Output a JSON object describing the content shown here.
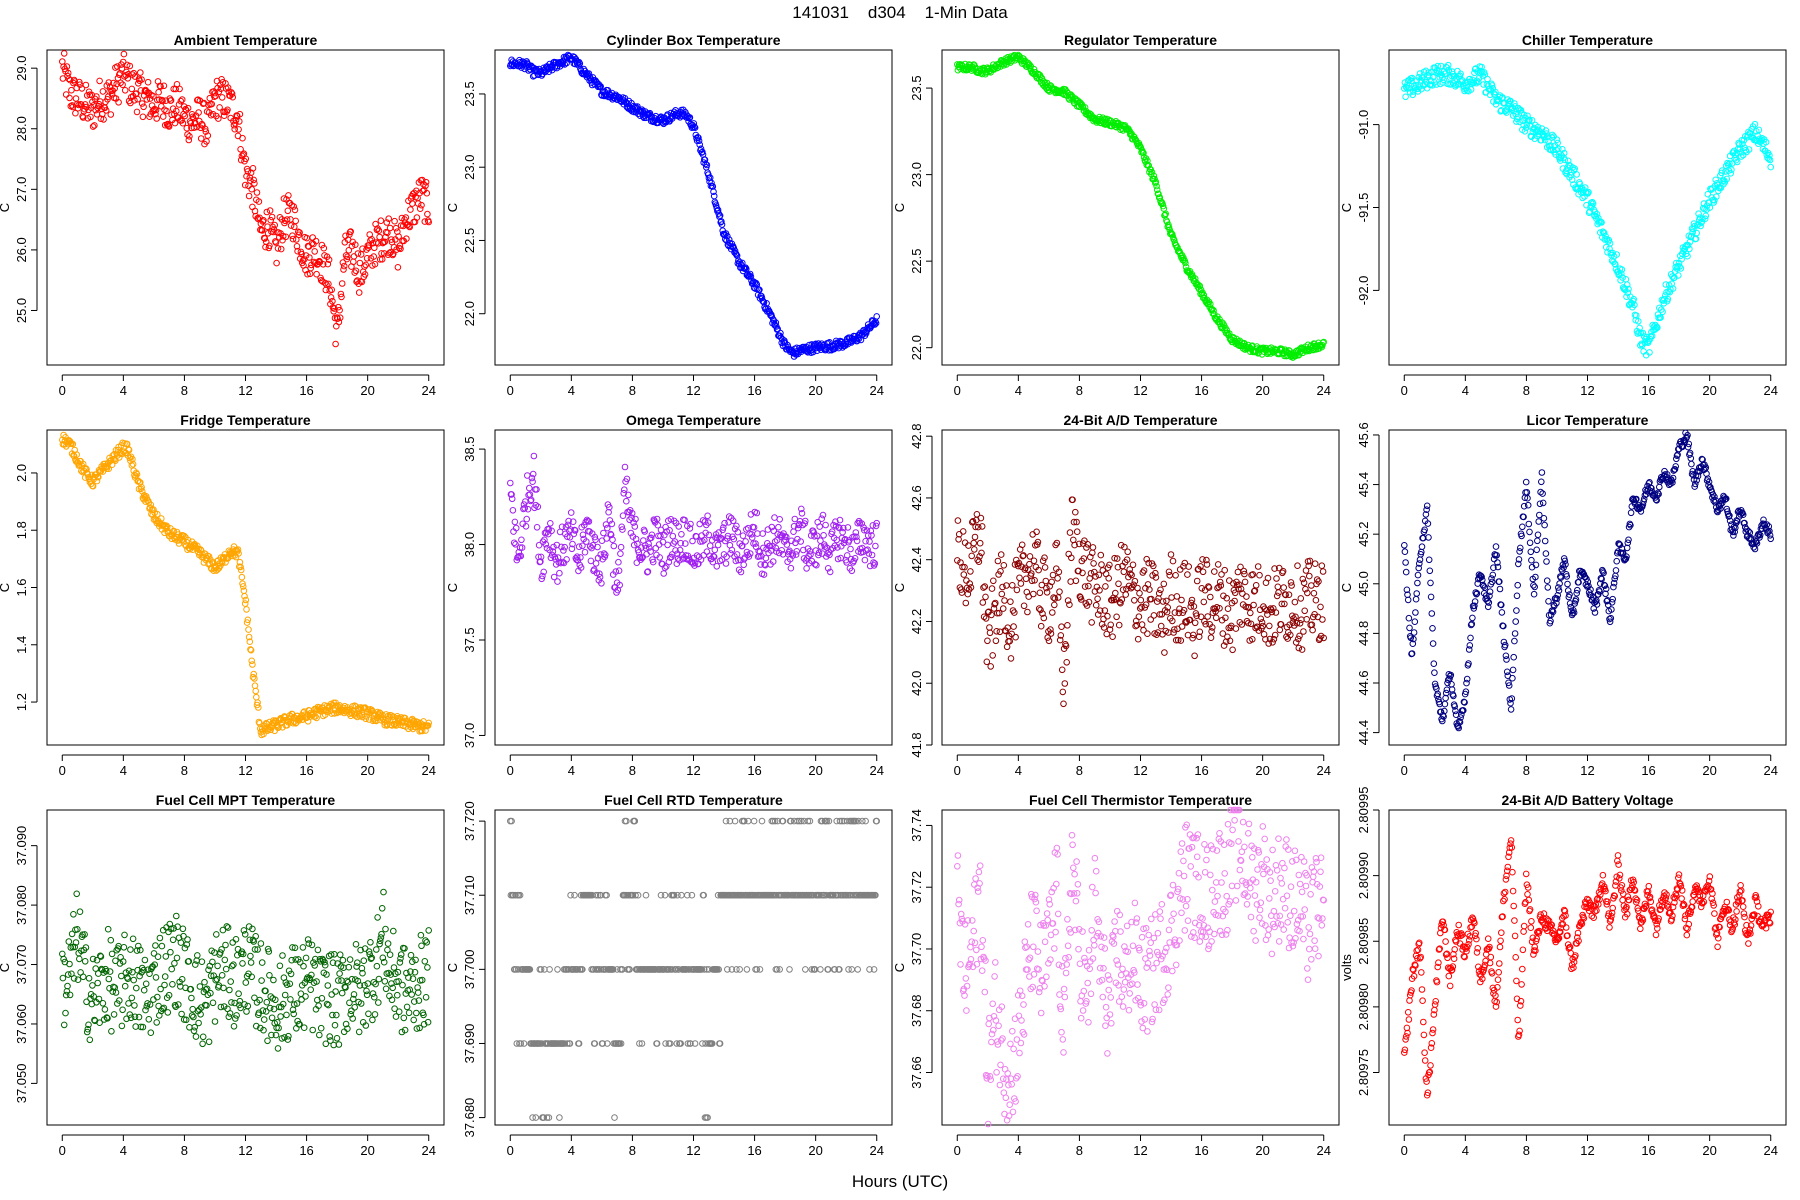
{
  "page": {
    "title": "141031    d304    1-Min Data",
    "xlabel": "Hours (UTC)"
  },
  "chart_data": [
    {
      "type": "scatter",
      "title": "Ambient Temperature",
      "ylabel": "C",
      "color": "#ff0000",
      "xticks": [
        0,
        4,
        8,
        12,
        16,
        20,
        24
      ],
      "yticks": [
        25,
        26,
        27,
        28,
        29
      ],
      "ylim": [
        24.1,
        29.3
      ],
      "x": [
        0,
        0.5,
        1,
        1.5,
        2,
        2.5,
        3,
        3.5,
        4,
        4.5,
        5,
        5.5,
        6,
        6.5,
        7,
        7.5,
        8,
        8.5,
        9,
        9.5,
        10,
        10.5,
        11,
        11.5,
        12,
        12.5,
        13,
        13.5,
        14,
        14.5,
        15,
        15.5,
        16,
        16.5,
        17,
        17.5,
        18,
        18.5,
        19,
        19.5,
        20,
        20.5,
        21,
        21.5,
        22,
        22.5,
        23,
        23.5,
        24
      ],
      "y": [
        29.0,
        28.6,
        28.5,
        28.4,
        28.3,
        28.5,
        28.5,
        28.7,
        28.9,
        28.7,
        28.6,
        28.5,
        28.4,
        28.5,
        28.3,
        28.4,
        28.2,
        28.1,
        28.2,
        28.0,
        28.5,
        28.5,
        28.4,
        28.2,
        27.3,
        27.0,
        26.3,
        26.4,
        26.0,
        26.5,
        26.6,
        26.2,
        25.9,
        26.0,
        25.8,
        25.5,
        24.6,
        25.9,
        26.0,
        25.6,
        25.9,
        26.1,
        26.2,
        26.3,
        26.0,
        26.5,
        26.7,
        26.9,
        26.7
      ],
      "spread": 0.35
    },
    {
      "type": "line",
      "title": "Cylinder Box Temperature",
      "ylabel": "C",
      "color": "#0000ff",
      "xticks": [
        0,
        4,
        8,
        12,
        16,
        20,
        24
      ],
      "yticks": [
        22.0,
        22.5,
        23.0,
        23.5
      ],
      "ylim": [
        21.65,
        23.8
      ],
      "x": [
        0,
        1,
        1.5,
        2,
        3,
        4,
        5,
        6,
        7,
        8,
        9,
        10,
        11,
        11.5,
        12,
        13,
        14,
        15,
        16,
        17,
        18,
        18.5,
        19,
        20,
        21,
        22,
        23,
        24
      ],
      "y": [
        23.71,
        23.7,
        23.65,
        23.64,
        23.7,
        23.75,
        23.63,
        23.52,
        23.48,
        23.41,
        23.35,
        23.32,
        23.37,
        23.36,
        23.28,
        22.95,
        22.55,
        22.35,
        22.2,
        22.0,
        21.78,
        21.73,
        21.75,
        21.77,
        21.78,
        21.8,
        21.85,
        21.96
      ],
      "spread": 0.03
    },
    {
      "type": "line",
      "title": "Regulator Temperature",
      "ylabel": "C",
      "color": "#00ee00",
      "xticks": [
        0,
        4,
        8,
        12,
        16,
        20,
        24
      ],
      "yticks": [
        22.0,
        22.5,
        23.0,
        23.5
      ],
      "ylim": [
        21.9,
        23.72
      ],
      "x": [
        0,
        1,
        1.5,
        2,
        3,
        4,
        5,
        6,
        7,
        8,
        9,
        10,
        11,
        11.5,
        12,
        13,
        14,
        15,
        16,
        17,
        18,
        19,
        20,
        21,
        22,
        23,
        24
      ],
      "y": [
        23.62,
        23.62,
        23.6,
        23.6,
        23.65,
        23.68,
        23.6,
        23.5,
        23.48,
        23.4,
        23.32,
        23.3,
        23.27,
        23.22,
        23.15,
        22.95,
        22.65,
        22.47,
        22.32,
        22.17,
        22.05,
        22.0,
        21.98,
        21.98,
        21.96,
        22.0,
        22.02
      ],
      "spread": 0.02
    },
    {
      "type": "scatter",
      "title": "Chiller Temperature",
      "ylabel": "C",
      "color": "#00ffff",
      "xticks": [
        0,
        4,
        8,
        12,
        16,
        20,
        24
      ],
      "yticks": [
        -91.0,
        -91.5,
        -92.0
      ],
      "ylim": [
        -92.45,
        -90.55
      ],
      "x": [
        0,
        1,
        2,
        3,
        4,
        5,
        6,
        7,
        8,
        9,
        10,
        11,
        12,
        13,
        14,
        15,
        15.5,
        16,
        16.5,
        17,
        18,
        19,
        20,
        21,
        22,
        23,
        24
      ],
      "y": [
        -90.8,
        -90.75,
        -90.7,
        -90.7,
        -90.75,
        -90.7,
        -90.85,
        -90.9,
        -91.0,
        -91.05,
        -91.15,
        -91.3,
        -91.45,
        -91.65,
        -91.85,
        -92.1,
        -92.3,
        -92.35,
        -92.2,
        -92.05,
        -91.85,
        -91.65,
        -91.45,
        -91.3,
        -91.15,
        -91.05,
        -91.2
      ],
      "spread": 0.06
    },
    {
      "type": "line",
      "title": "Fridge Temperature",
      "ylabel": "C",
      "color": "#ffa500",
      "xticks": [
        0,
        4,
        8,
        12,
        16,
        20,
        24
      ],
      "yticks": [
        1.2,
        1.4,
        1.6,
        1.8,
        2.0
      ],
      "ylim": [
        1.05,
        2.15
      ],
      "x": [
        0,
        0.5,
        1,
        1.5,
        2,
        3,
        4,
        4.3,
        5,
        6,
        7,
        8,
        9,
        10,
        10.5,
        11,
        11.5,
        12,
        12.5,
        13,
        14,
        15,
        16,
        17,
        18,
        19,
        20,
        21,
        22,
        23,
        24
      ],
      "y": [
        2.12,
        2.1,
        2.05,
        2.0,
        1.97,
        2.03,
        2.09,
        2.08,
        1.96,
        1.85,
        1.79,
        1.76,
        1.72,
        1.67,
        1.69,
        1.73,
        1.72,
        1.55,
        1.3,
        1.1,
        1.12,
        1.14,
        1.15,
        1.17,
        1.18,
        1.17,
        1.16,
        1.14,
        1.13,
        1.12,
        1.11
      ],
      "spread": 0.02
    },
    {
      "type": "scatter",
      "title": "Omega Temperature",
      "ylabel": "C",
      "color": "#a020f0",
      "xticks": [
        0,
        4,
        8,
        12,
        16,
        20,
        24
      ],
      "yticks": [
        37.0,
        37.5,
        38.0,
        38.5
      ],
      "ylim": [
        36.95,
        38.6
      ],
      "x": [
        0,
        0.5,
        1,
        1.5,
        2,
        2.5,
        3,
        3.5,
        4,
        4.5,
        5,
        5.5,
        6,
        6.5,
        7,
        7.5,
        8,
        8.5,
        9,
        9.5,
        10,
        10.5,
        11,
        11.5,
        12,
        12.5,
        13,
        13.5,
        14,
        14.5,
        15,
        15.5,
        16,
        16.5,
        17,
        17.5,
        18,
        18.5,
        19,
        19.5,
        20,
        20.5,
        21,
        21.5,
        22,
        22.5,
        23,
        23.5,
        24
      ],
      "y": [
        38.3,
        37.9,
        38.2,
        38.4,
        37.9,
        38.1,
        37.9,
        38.0,
        38.05,
        37.9,
        38.1,
        37.95,
        37.9,
        38.2,
        37.7,
        38.3,
        38.05,
        38.0,
        37.95,
        38.05,
        37.95,
        38.05,
        38.0,
        38.05,
        37.95,
        38.0,
        38.05,
        37.95,
        38.0,
        38.05,
        37.95,
        38.0,
        38.1,
        37.95,
        38.0,
        38.05,
        37.95,
        38.0,
        38.1,
        37.95,
        38.0,
        38.05,
        37.95,
        38.05,
        38.0,
        37.95,
        38.05,
        38.0,
        38.0
      ],
      "spread": 0.12
    },
    {
      "type": "scatter",
      "title": "24-Bit A/D Temperature",
      "ylabel": "C",
      "color": "#8b0000",
      "xticks": [
        0,
        4,
        8,
        12,
        16,
        20,
        24
      ],
      "yticks": [
        41.8,
        42.0,
        42.2,
        42.4,
        42.6,
        42.8
      ],
      "ylim": [
        41.8,
        42.82
      ],
      "x": [
        0,
        0.5,
        1,
        1.5,
        2,
        2.5,
        3,
        3.5,
        4,
        4.5,
        5,
        5.5,
        6,
        6.5,
        7,
        7.5,
        8,
        8.5,
        9,
        9.5,
        10,
        10.5,
        11,
        11.5,
        12,
        12.5,
        13,
        13.5,
        14,
        14.5,
        15,
        15.5,
        16,
        16.5,
        17,
        17.5,
        18,
        18.5,
        19,
        19.5,
        20,
        20.5,
        21,
        21.5,
        22,
        22.5,
        23,
        23.5,
        24
      ],
      "y": [
        42.45,
        42.35,
        42.4,
        42.5,
        42.1,
        42.25,
        42.3,
        42.2,
        42.3,
        42.35,
        42.4,
        42.3,
        42.25,
        42.35,
        42.0,
        42.5,
        42.4,
        42.35,
        42.3,
        42.3,
        42.25,
        42.3,
        42.35,
        42.28,
        42.26,
        42.28,
        42.25,
        42.2,
        42.3,
        42.25,
        42.28,
        42.2,
        42.3,
        42.26,
        42.28,
        42.25,
        42.22,
        42.3,
        42.27,
        42.25,
        42.28,
        42.22,
        42.27,
        42.25,
        42.28,
        42.23,
        42.27,
        42.26,
        42.27
      ],
      "spread": 0.13
    },
    {
      "type": "line",
      "title": "Licor Temperature",
      "ylabel": "C",
      "color": "#000080",
      "xticks": [
        0,
        4,
        8,
        12,
        16,
        20,
        24
      ],
      "yticks": [
        44.4,
        44.6,
        44.8,
        45.0,
        45.2,
        45.4,
        45.6
      ],
      "ylim": [
        44.35,
        45.62
      ],
      "x": [
        0,
        0.5,
        1,
        1.5,
        2,
        2.5,
        3,
        3.5,
        4,
        4.5,
        5,
        5.5,
        6,
        6.5,
        7,
        7.5,
        8,
        8.5,
        9,
        9.5,
        10,
        10.5,
        11,
        11.5,
        12,
        12.5,
        13,
        13.5,
        14,
        14.5,
        15,
        15.5,
        16,
        16.5,
        17,
        17.5,
        18,
        18.5,
        19,
        19.5,
        20,
        20.5,
        21,
        21.5,
        22,
        22.5,
        23,
        23.5,
        24
      ],
      "y": [
        45.15,
        44.7,
        45.1,
        45.3,
        44.6,
        44.45,
        44.65,
        44.4,
        44.55,
        44.9,
        45.05,
        44.9,
        45.15,
        44.8,
        44.5,
        45.1,
        45.4,
        44.95,
        45.45,
        44.85,
        44.95,
        45.1,
        44.85,
        45.05,
        45.0,
        44.9,
        45.05,
        44.85,
        45.15,
        45.1,
        45.35,
        45.3,
        45.4,
        45.35,
        45.45,
        45.4,
        45.55,
        45.6,
        45.4,
        45.5,
        45.4,
        45.3,
        45.35,
        45.2,
        45.3,
        45.2,
        45.15,
        45.25,
        45.2
      ],
      "spread": 0.02
    },
    {
      "type": "scatter",
      "title": "Fuel Cell MPT Temperature",
      "ylabel": "C",
      "color": "#006400",
      "xticks": [
        0,
        4,
        8,
        12,
        16,
        20,
        24
      ],
      "yticks": [
        37.05,
        37.06,
        37.07,
        37.08,
        37.09
      ],
      "ylim": [
        37.043,
        37.096
      ],
      "x": [
        0,
        0.5,
        1,
        1.5,
        2,
        2.5,
        3,
        3.5,
        4,
        4.5,
        5,
        5.5,
        6,
        6.5,
        7,
        7.5,
        8,
        8.5,
        9,
        9.5,
        10,
        10.5,
        11,
        11.5,
        12,
        12.5,
        13,
        13.5,
        14,
        14.5,
        15,
        15.5,
        16,
        16.5,
        17,
        17.5,
        18,
        18.5,
        19,
        19.5,
        20,
        20.5,
        21,
        21.5,
        22,
        22.5,
        23,
        23.5,
        24
      ],
      "y": [
        37.066,
        37.068,
        37.075,
        37.067,
        37.064,
        37.066,
        37.068,
        37.065,
        37.067,
        37.068,
        37.066,
        37.064,
        37.067,
        37.069,
        37.07,
        37.071,
        37.068,
        37.066,
        37.064,
        37.063,
        37.068,
        37.069,
        37.068,
        37.067,
        37.07,
        37.068,
        37.066,
        37.065,
        37.063,
        37.064,
        37.066,
        37.065,
        37.067,
        37.066,
        37.064,
        37.065,
        37.063,
        37.066,
        37.067,
        37.065,
        37.068,
        37.069,
        37.075,
        37.068,
        37.067,
        37.065,
        37.066,
        37.067,
        37.068
      ],
      "spread": 0.008
    },
    {
      "type": "scatter",
      "title": "Fuel Cell RTD Temperature",
      "ylabel": "C",
      "color": "#808080",
      "xticks": [
        0,
        4,
        8,
        12,
        16,
        20,
        24
      ],
      "yticks": [
        37.68,
        37.69,
        37.7,
        37.71,
        37.72
      ],
      "ylim": [
        37.679,
        37.7215
      ],
      "x": [
        0,
        0.5,
        1,
        1.5,
        2,
        2.5,
        3,
        3.5,
        4,
        4.5,
        5,
        5.5,
        6,
        6.5,
        7,
        7.5,
        8,
        8.5,
        9,
        9.5,
        10,
        10.5,
        11,
        11.5,
        12,
        12.5,
        13,
        13.5,
        14,
        14.5,
        15,
        15.5,
        16,
        16.5,
        17,
        17.5,
        18,
        18.5,
        19,
        19.5,
        20,
        20.5,
        21,
        21.5,
        22,
        22.5,
        23,
        23.5,
        24
      ],
      "y": [
        37.71,
        37.7,
        37.7,
        37.69,
        37.69,
        37.69,
        37.69,
        37.69,
        37.7,
        37.7,
        37.71,
        37.7,
        37.7,
        37.7,
        37.69,
        37.71,
        37.71,
        37.7,
        37.7,
        37.7,
        37.7,
        37.7,
        37.7,
        37.7,
        37.7,
        37.7,
        37.69,
        37.7,
        37.71,
        37.71,
        37.71,
        37.71,
        37.71,
        37.71,
        37.71,
        37.71,
        37.71,
        37.71,
        37.71,
        37.71,
        37.71,
        37.71,
        37.71,
        37.71,
        37.71,
        37.71,
        37.71,
        37.71,
        37.71
      ],
      "discrete": true
    },
    {
      "type": "scatter",
      "title": "Fuel Cell Thermistor Temperature",
      "ylabel": "C",
      "color": "#ee82ee",
      "xticks": [
        0,
        4,
        8,
        12,
        16,
        20,
        24
      ],
      "yticks": [
        37.66,
        37.68,
        37.7,
        37.72,
        37.74
      ],
      "ylim": [
        37.643,
        37.745
      ],
      "x": [
        0,
        0.5,
        1,
        1.5,
        2,
        2.5,
        3,
        3.5,
        4,
        4.5,
        5,
        5.5,
        6,
        6.5,
        7,
        7.5,
        8,
        8.5,
        9,
        9.5,
        10,
        10.5,
        11,
        11.5,
        12,
        12.5,
        13,
        13.5,
        14,
        14.5,
        15,
        15.5,
        16,
        16.5,
        17,
        17.5,
        18,
        18.5,
        19,
        19.5,
        20,
        20.5,
        21,
        21.5,
        22,
        22.5,
        23,
        23.5,
        24
      ],
      "y": [
        37.715,
        37.69,
        37.7,
        37.72,
        37.66,
        37.68,
        37.665,
        37.66,
        37.67,
        37.69,
        37.705,
        37.69,
        37.7,
        37.72,
        37.67,
        37.73,
        37.7,
        37.68,
        37.715,
        37.69,
        37.68,
        37.7,
        37.69,
        37.7,
        37.69,
        37.69,
        37.695,
        37.7,
        37.705,
        37.715,
        37.725,
        37.72,
        37.72,
        37.715,
        37.725,
        37.72,
        37.73,
        37.735,
        37.725,
        37.72,
        37.725,
        37.715,
        37.72,
        37.72,
        37.715,
        37.715,
        37.705,
        37.715,
        37.71
      ],
      "spread": 0.018
    },
    {
      "type": "line",
      "title": "24-Bit A/D Battery Voltage",
      "ylabel": "volts",
      "color": "#ff0000",
      "xticks": [
        0,
        4,
        8,
        12,
        16,
        20,
        24
      ],
      "yticks": [
        2.80975,
        2.8098,
        2.80985,
        2.8099,
        2.80995
      ],
      "ylim": [
        2.80971,
        2.80995
      ],
      "x": [
        0,
        0.5,
        1,
        1.5,
        2,
        2.5,
        3,
        3.5,
        4,
        4.5,
        5,
        5.5,
        6,
        6.5,
        7,
        7.5,
        8,
        8.5,
        9,
        9.5,
        10,
        10.5,
        11,
        11.5,
        12,
        12.5,
        13,
        13.5,
        14,
        14.5,
        15,
        15.5,
        16,
        16.5,
        17,
        17.5,
        18,
        18.5,
        19,
        19.5,
        20,
        20.5,
        21,
        21.5,
        22,
        22.5,
        23,
        23.5,
        24
      ],
      "y": [
        2.80976,
        2.80982,
        2.80985,
        2.80973,
        2.8098,
        2.80987,
        2.80982,
        2.80986,
        2.80984,
        2.80987,
        2.80982,
        2.80985,
        2.8098,
        2.80988,
        2.80993,
        2.80977,
        2.8099,
        2.80984,
        2.80987,
        2.80986,
        2.80985,
        2.80987,
        2.80983,
        2.80986,
        2.80988,
        2.80987,
        2.8099,
        2.80986,
        2.80991,
        2.80987,
        2.8099,
        2.80986,
        2.80989,
        2.80986,
        2.80989,
        2.80987,
        2.8099,
        2.80986,
        2.80989,
        2.80988,
        2.8099,
        2.80985,
        2.80988,
        2.80986,
        2.80989,
        2.80985,
        2.80988,
        2.80986,
        2.80987
      ],
      "spread": 6e-06
    }
  ]
}
